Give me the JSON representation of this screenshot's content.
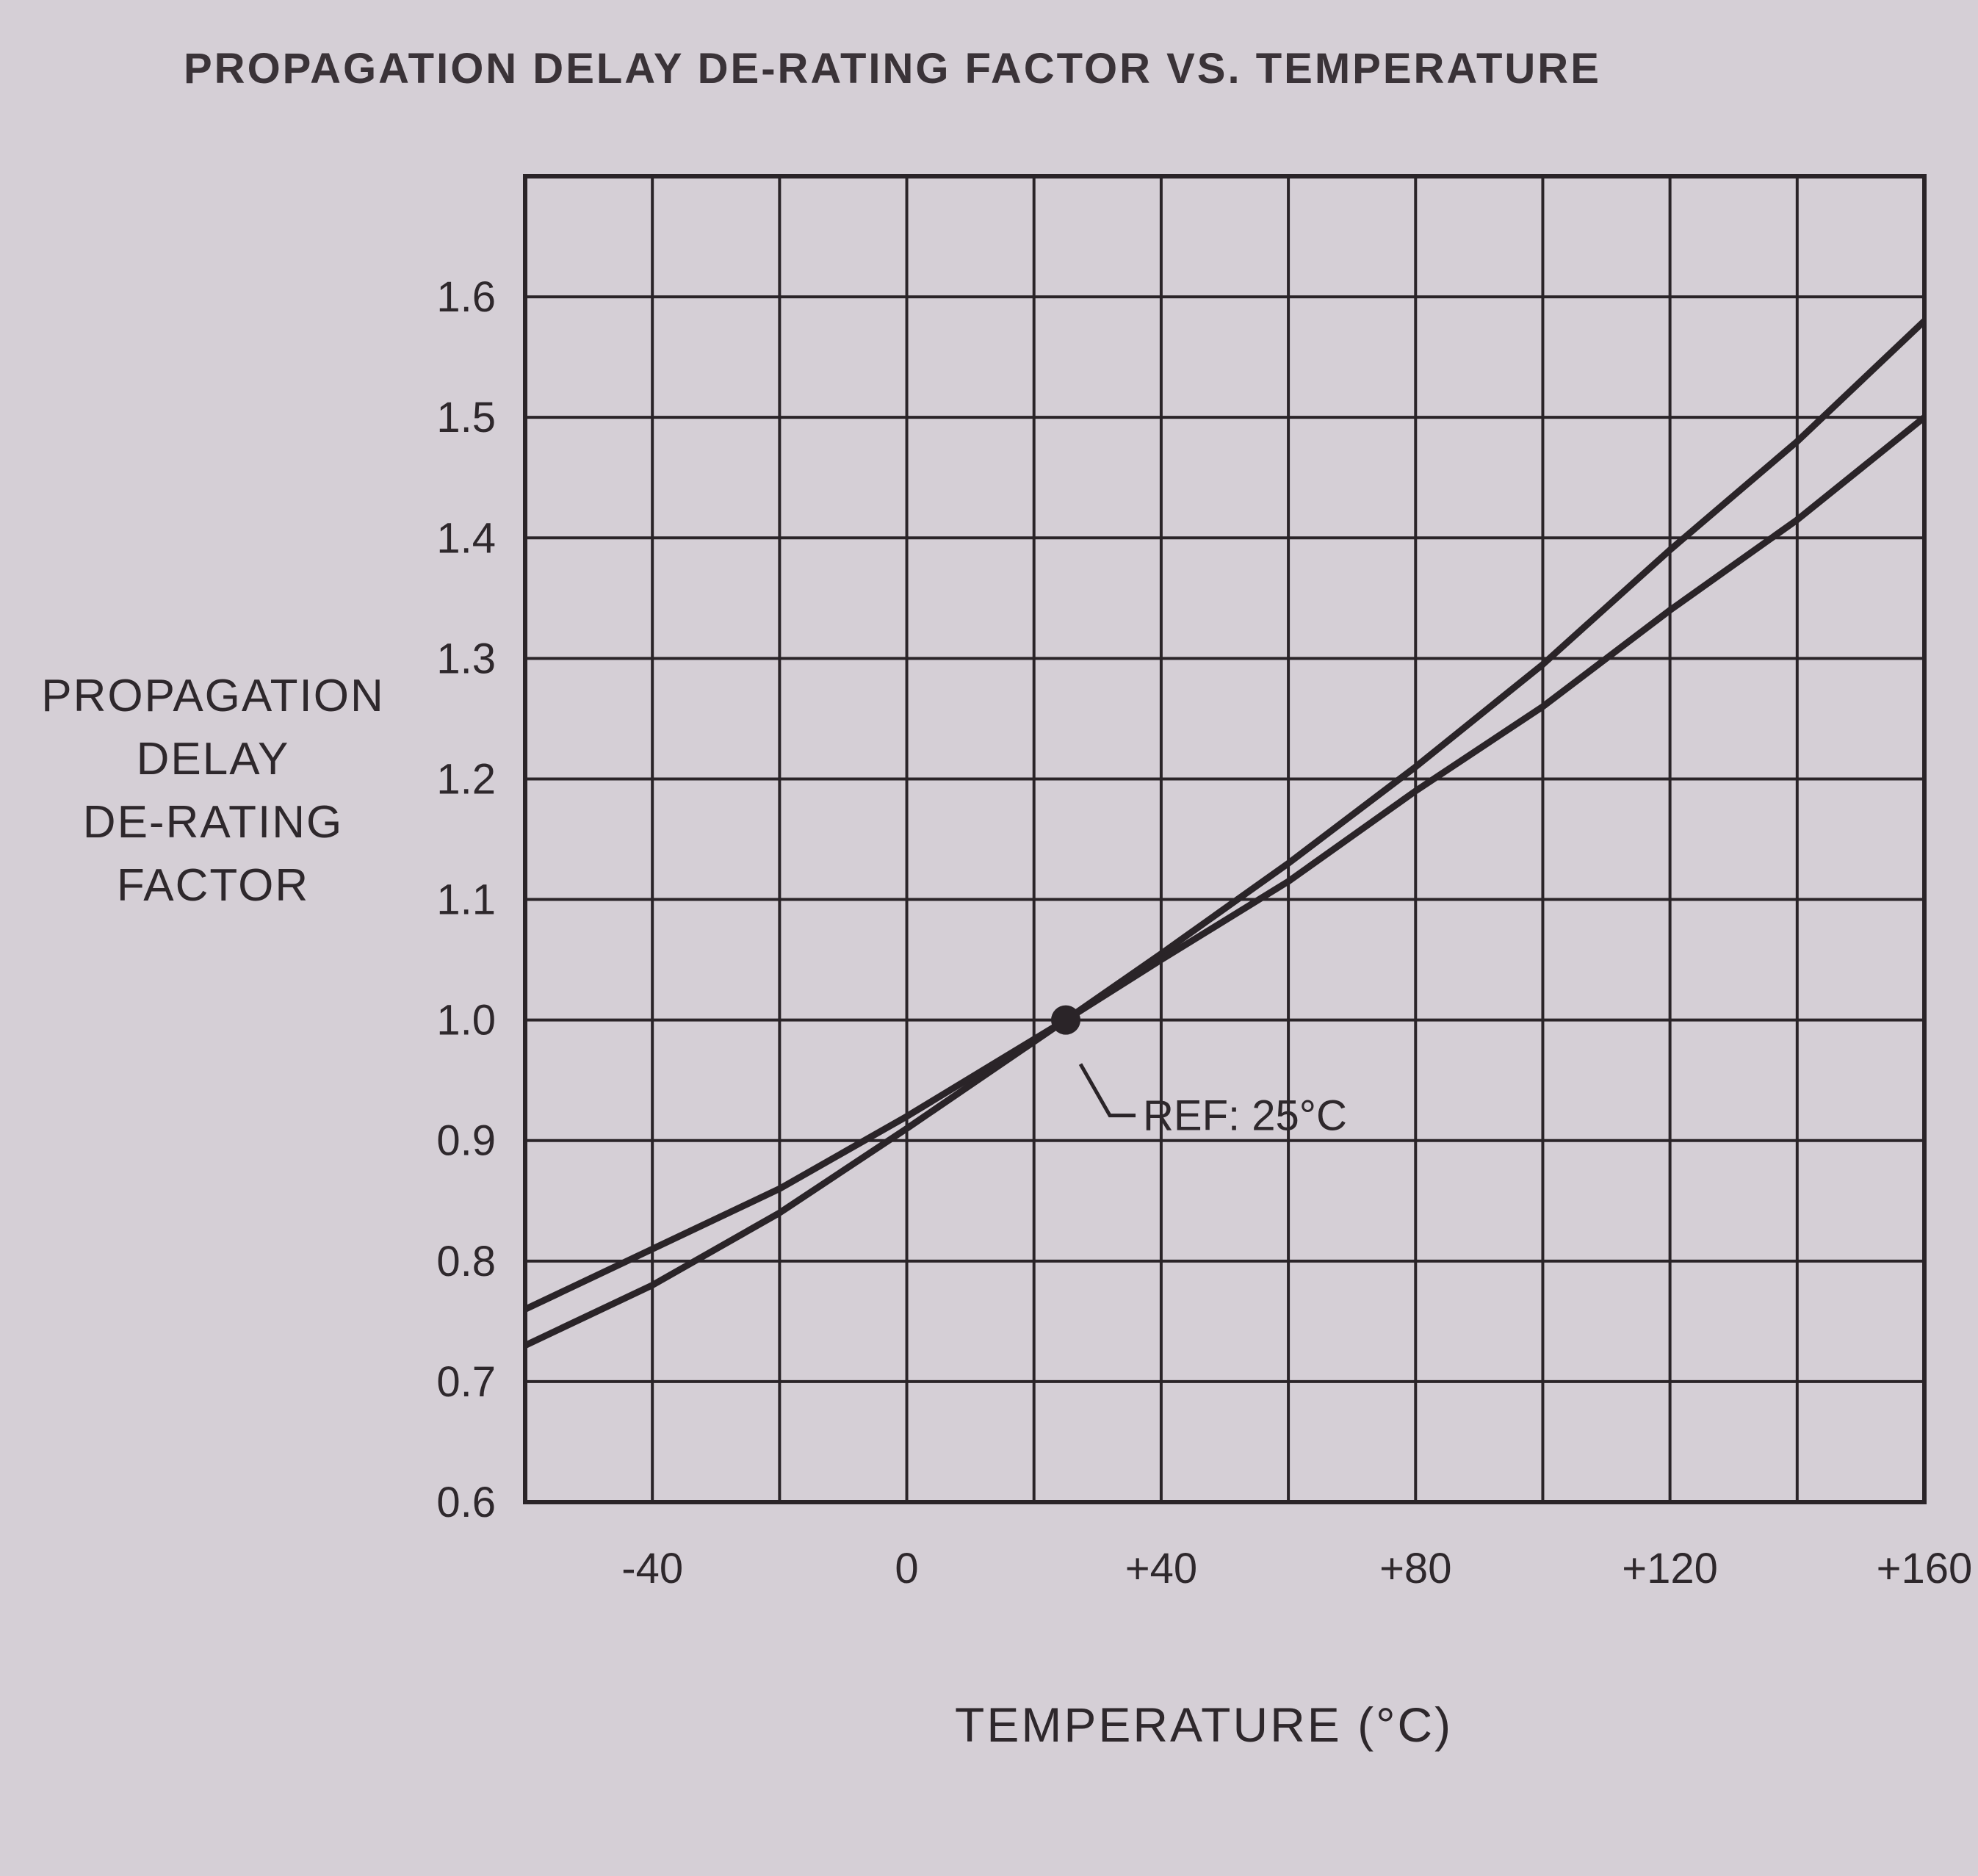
{
  "chart_data": {
    "type": "line",
    "title": "PROPAGATION DELAY DE-RATING FACTOR VS. TEMPERATURE",
    "xlabel": "TEMPERATURE (°C)",
    "ylabel": [
      "PROPAGATION",
      "DELAY",
      "DE-RATING",
      "FACTOR"
    ],
    "xlim": [
      -60,
      160
    ],
    "ylim": [
      0.6,
      1.7
    ],
    "grid": true,
    "xticks": [
      -40,
      0,
      40,
      80,
      120,
      160
    ],
    "xtick_labels": [
      "-40",
      "0",
      "+40",
      "+80",
      "+120",
      "+160"
    ],
    "yticks": [
      0.6,
      0.7,
      0.8,
      0.9,
      1.0,
      1.1,
      1.2,
      1.3,
      1.4,
      1.5,
      1.6
    ],
    "ytick_labels": [
      "0.6",
      "0.7",
      "0.8",
      "0.9",
      "1.0",
      "1.1",
      "1.2",
      "1.3",
      "1.4",
      "1.5",
      "1.6"
    ],
    "series": [
      {
        "name": "curve-upper-at-high-temp",
        "x": [
          -60,
          -40,
          -20,
          0,
          25,
          40,
          60,
          80,
          100,
          120,
          140,
          160
        ],
        "y": [
          0.73,
          0.78,
          0.84,
          0.91,
          1.0,
          1.055,
          1.13,
          1.21,
          1.295,
          1.39,
          1.48,
          1.58
        ]
      },
      {
        "name": "curve-lower-at-high-temp",
        "x": [
          -60,
          -40,
          -20,
          0,
          25,
          40,
          60,
          80,
          100,
          120,
          140,
          160
        ],
        "y": [
          0.76,
          0.81,
          0.86,
          0.92,
          1.0,
          1.05,
          1.115,
          1.19,
          1.26,
          1.34,
          1.415,
          1.5
        ]
      }
    ],
    "annotations": [
      {
        "text": "REF: 25°C",
        "x": 25,
        "y": 1.0
      }
    ],
    "colors": {
      "ink": "#2a2428",
      "paper": "#d5cfd6"
    }
  }
}
